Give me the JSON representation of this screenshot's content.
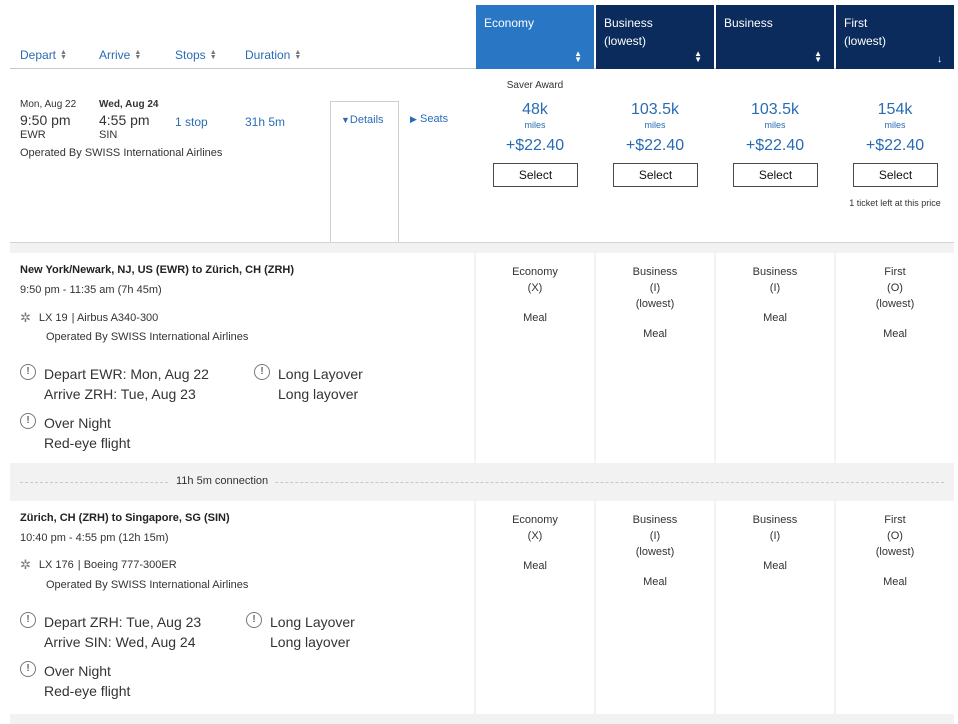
{
  "sort_headers": [
    {
      "label": "Depart"
    },
    {
      "label": "Arrive"
    },
    {
      "label": "Stops"
    },
    {
      "label": "Duration"
    }
  ],
  "fare_columns": [
    {
      "line1": "Economy",
      "line2": "",
      "active": true
    },
    {
      "line1": "Business",
      "line2": "(lowest)",
      "active": false
    },
    {
      "line1": "Business",
      "line2": "",
      "active": false
    },
    {
      "line1": "First",
      "line2": "(lowest)",
      "active": false
    }
  ],
  "summary": {
    "depart_date": "Mon, Aug 22",
    "depart_time": "9:50 pm",
    "depart_code": "EWR",
    "arrive_date": "Wed, Aug 24",
    "arrive_time": "4:55 pm",
    "arrive_code": "SIN",
    "stops": "1 stop",
    "duration": "31h 5m",
    "operated_by": "Operated By SWISS International Airlines",
    "details_label": "Details",
    "seats_label": "Seats"
  },
  "prices": {
    "saver_award_label": "Saver Award",
    "items": [
      {
        "miles": "48k",
        "unit": "miles",
        "tax": "+$22.40",
        "button": "Select"
      },
      {
        "miles": "103.5k",
        "unit": "miles",
        "tax": "+$22.40",
        "button": "Select"
      },
      {
        "miles": "103.5k",
        "unit": "miles",
        "tax": "+$22.40",
        "button": "Select"
      },
      {
        "miles": "154k",
        "unit": "miles",
        "tax": "+$22.40",
        "button": "Select"
      }
    ],
    "ticket_note": "1 ticket left at this price"
  },
  "segments": [
    {
      "title": "New York/Newark, NJ, US (EWR) to Zürich, CH (ZRH)",
      "time": "9:50 pm - 11:35 am (7h 45m)",
      "flight": "LX 19",
      "aircraft": "| Airbus A340-300",
      "operated_by": "Operated By SWISS International Airlines",
      "notes": [
        {
          "line1": "Depart EWR: Mon, Aug 22",
          "line2": "Arrive ZRH: Tue, Aug 23"
        },
        {
          "line1": "Long Layover",
          "line2": "Long layover"
        },
        {
          "line1": "Over Night",
          "line2": "Red-eye flight"
        }
      ],
      "cabins": [
        {
          "lines": [
            "Economy",
            "(X)"
          ],
          "meal": "Meal"
        },
        {
          "lines": [
            "Business",
            "(I)",
            "(lowest)"
          ],
          "meal": "Meal"
        },
        {
          "lines": [
            "Business",
            "(I)"
          ],
          "meal": "Meal"
        },
        {
          "lines": [
            "First",
            "(O)",
            "(lowest)"
          ],
          "meal": "Meal"
        }
      ]
    },
    {
      "title": "Zürich, CH (ZRH) to Singapore, SG (SIN)",
      "time": "10:40 pm - 4:55 pm (12h 15m)",
      "flight": "LX 176",
      "aircraft": "| Boeing 777-300ER",
      "operated_by": "Operated By SWISS International Airlines",
      "notes": [
        {
          "line1": "Depart ZRH: Tue, Aug 23",
          "line2": "Arrive SIN: Wed, Aug 24"
        },
        {
          "line1": "Long Layover",
          "line2": "Long layover"
        },
        {
          "line1": "Over Night",
          "line2": "Red-eye flight"
        }
      ],
      "cabins": [
        {
          "lines": [
            "Economy",
            "(X)"
          ],
          "meal": "Meal"
        },
        {
          "lines": [
            "Business",
            "(I)",
            "(lowest)"
          ],
          "meal": "Meal"
        },
        {
          "lines": [
            "Business",
            "(I)"
          ],
          "meal": "Meal"
        },
        {
          "lines": [
            "First",
            "(O)",
            "(lowest)"
          ],
          "meal": "Meal"
        }
      ]
    }
  ],
  "connection": "11h 5m connection",
  "colors": {
    "header_dark": "#0a2b5c",
    "header_active": "#2976c5",
    "link_blue": "#2a6cb4",
    "panel_gray": "#f2f2f2"
  },
  "icons": [
    "sort-arrows-icon",
    "sort-down-icon",
    "caret-down-icon",
    "caret-right-icon",
    "star-alliance-icon",
    "warning-circle-icon"
  ]
}
